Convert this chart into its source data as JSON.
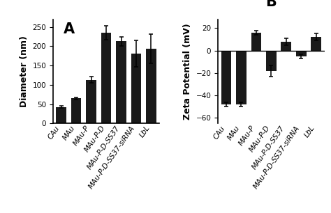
{
  "categories": [
    "CAu",
    "MAu",
    "MAu-P",
    "MAu-P-D",
    "MAu-P-D-SS37",
    "MAu-P-D-SS37-siRNA",
    "LbL"
  ],
  "diameter_values": [
    43,
    65,
    113,
    235,
    213,
    181,
    193
  ],
  "diameter_errors": [
    3,
    3,
    8,
    18,
    12,
    35,
    38
  ],
  "zeta_values": [
    -48,
    -48,
    16,
    -18,
    8,
    -5,
    12
  ],
  "zeta_errors": [
    2,
    2,
    2,
    5,
    3,
    2,
    3
  ],
  "bar_color": "#1a1a1a",
  "background_color": "#ffffff",
  "panel_a_label": "A",
  "panel_b_label": "B",
  "ylabel_a": "Diameter (nm)",
  "ylabel_b": "Zeta Potential (mV)",
  "ylim_a": [
    0,
    270
  ],
  "ylim_b": [
    -65,
    28
  ],
  "yticks_a": [
    0,
    50,
    100,
    150,
    200,
    250
  ],
  "yticks_b": [
    -60,
    -40,
    -20,
    0,
    20
  ],
  "label_fontsize": 9,
  "tick_fontsize": 7.5,
  "panel_label_fontsize": 15
}
